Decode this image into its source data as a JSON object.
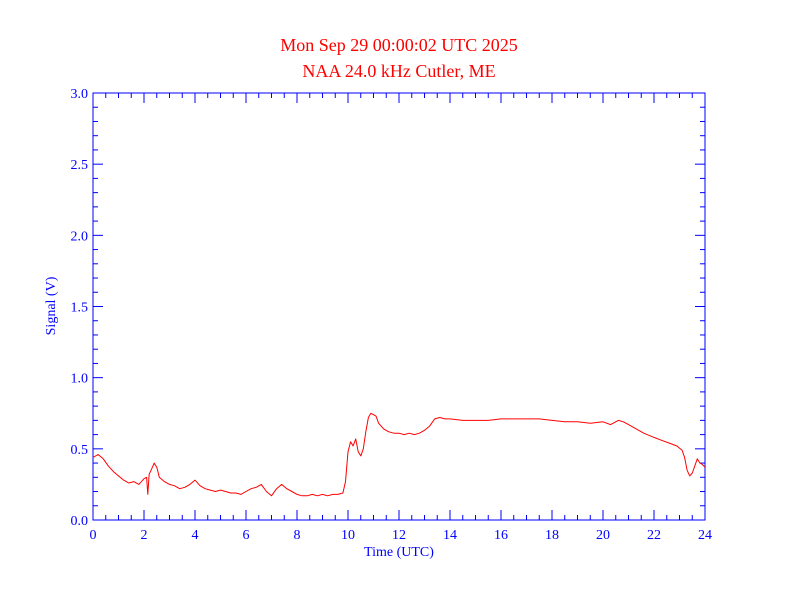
{
  "chart_data": {
    "type": "line",
    "title": "Mon Sep 29 00:00:02 UTC 2025",
    "subtitle": "NAA 24.0 kHz Cutler, ME",
    "xlabel": "Time (UTC)",
    "ylabel": "Signal (V)",
    "xlim": [
      0,
      24
    ],
    "ylim": [
      0,
      3.0
    ],
    "x_ticks": [
      "0",
      "2",
      "4",
      "6",
      "8",
      "10",
      "12",
      "14",
      "16",
      "18",
      "20",
      "22",
      "24"
    ],
    "y_ticks": [
      "0.0",
      "0.5",
      "1.0",
      "1.5",
      "2.0",
      "2.5",
      "3.0"
    ],
    "grid": false,
    "colors": {
      "axis": "#0000ff",
      "series": "#ff0000",
      "title": "#ff0000"
    },
    "series": [
      {
        "x": [
          0.0,
          0.2,
          0.4,
          0.6,
          0.8,
          1.0,
          1.2,
          1.4,
          1.6,
          1.8,
          2.0,
          2.1,
          2.15,
          2.2,
          2.3,
          2.4,
          2.5,
          2.6,
          2.8,
          3.0,
          3.2,
          3.4,
          3.6,
          3.8,
          4.0,
          4.2,
          4.4,
          4.6,
          4.8,
          5.0,
          5.2,
          5.4,
          5.6,
          5.8,
          6.0,
          6.2,
          6.4,
          6.6,
          6.8,
          7.0,
          7.2,
          7.4,
          7.6,
          7.8,
          8.0,
          8.2,
          8.4,
          8.6,
          8.8,
          9.0,
          9.2,
          9.4,
          9.6,
          9.8,
          9.9,
          10.0,
          10.1,
          10.2,
          10.3,
          10.4,
          10.5,
          10.6,
          10.7,
          10.8,
          10.9,
          11.0,
          11.1,
          11.2,
          11.4,
          11.6,
          11.8,
          12.0,
          12.2,
          12.4,
          12.6,
          12.8,
          13.0,
          13.2,
          13.4,
          13.6,
          13.8,
          14.0,
          14.5,
          15.0,
          15.5,
          16.0,
          16.5,
          17.0,
          17.5,
          18.0,
          18.5,
          19.0,
          19.5,
          20.0,
          20.3,
          20.6,
          20.8,
          21.0,
          21.3,
          21.6,
          22.0,
          22.3,
          22.6,
          22.9,
          23.1,
          23.2,
          23.3,
          23.4,
          23.5,
          23.6,
          23.7,
          23.8,
          23.9,
          24.0
        ],
        "y": [
          0.44,
          0.46,
          0.43,
          0.38,
          0.34,
          0.31,
          0.28,
          0.26,
          0.27,
          0.25,
          0.29,
          0.3,
          0.18,
          0.32,
          0.36,
          0.4,
          0.37,
          0.3,
          0.27,
          0.25,
          0.24,
          0.22,
          0.23,
          0.25,
          0.28,
          0.24,
          0.22,
          0.21,
          0.2,
          0.21,
          0.2,
          0.19,
          0.19,
          0.18,
          0.2,
          0.22,
          0.23,
          0.25,
          0.2,
          0.17,
          0.22,
          0.25,
          0.22,
          0.2,
          0.18,
          0.17,
          0.17,
          0.18,
          0.17,
          0.18,
          0.17,
          0.18,
          0.18,
          0.19,
          0.27,
          0.48,
          0.55,
          0.52,
          0.57,
          0.48,
          0.45,
          0.5,
          0.62,
          0.72,
          0.75,
          0.74,
          0.73,
          0.68,
          0.64,
          0.62,
          0.61,
          0.61,
          0.6,
          0.61,
          0.6,
          0.61,
          0.63,
          0.66,
          0.71,
          0.72,
          0.71,
          0.71,
          0.7,
          0.7,
          0.7,
          0.71,
          0.71,
          0.71,
          0.71,
          0.7,
          0.69,
          0.69,
          0.68,
          0.69,
          0.67,
          0.7,
          0.69,
          0.67,
          0.64,
          0.61,
          0.58,
          0.56,
          0.54,
          0.52,
          0.49,
          0.44,
          0.35,
          0.31,
          0.33,
          0.38,
          0.43,
          0.4,
          0.39,
          0.37
        ]
      }
    ]
  }
}
